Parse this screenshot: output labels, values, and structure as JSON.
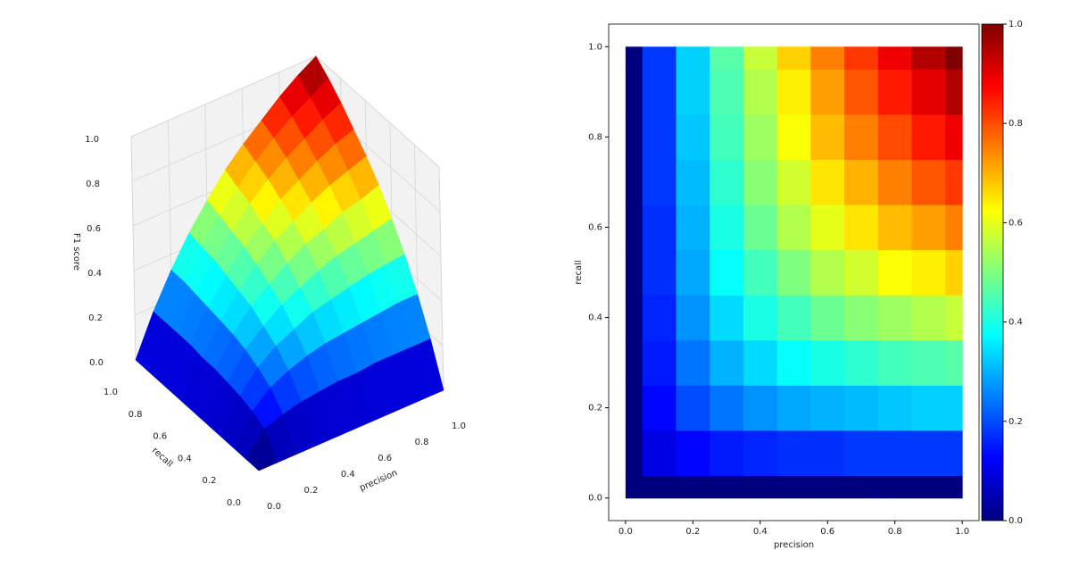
{
  "chart_data": [
    {
      "type": "surface3d",
      "xlabel": "precision",
      "ylabel": "recall",
      "zlabel": "F1 score",
      "x": [
        0,
        0.1,
        0.2,
        0.3,
        0.4,
        0.5,
        0.6,
        0.7,
        0.8,
        0.9,
        1
      ],
      "y": [
        0,
        0.1,
        0.2,
        0.3,
        0.4,
        0.5,
        0.6,
        0.7,
        0.8,
        0.9,
        1
      ],
      "z": [
        [
          0,
          0,
          0,
          0,
          0,
          0,
          0,
          0,
          0,
          0,
          0
        ],
        [
          0,
          0.1,
          0.13,
          0.15,
          0.16,
          0.17,
          0.17,
          0.18,
          0.18,
          0.18,
          0.18
        ],
        [
          0,
          0.13,
          0.2,
          0.24,
          0.27,
          0.29,
          0.3,
          0.31,
          0.32,
          0.33,
          0.33
        ],
        [
          0,
          0.15,
          0.24,
          0.3,
          0.34,
          0.38,
          0.4,
          0.42,
          0.44,
          0.45,
          0.46
        ],
        [
          0,
          0.16,
          0.27,
          0.34,
          0.4,
          0.44,
          0.48,
          0.51,
          0.53,
          0.55,
          0.57
        ],
        [
          0,
          0.17,
          0.29,
          0.38,
          0.44,
          0.5,
          0.55,
          0.58,
          0.62,
          0.64,
          0.67
        ],
        [
          0,
          0.17,
          0.3,
          0.4,
          0.48,
          0.55,
          0.6,
          0.65,
          0.69,
          0.72,
          0.75
        ],
        [
          0,
          0.18,
          0.31,
          0.42,
          0.51,
          0.58,
          0.65,
          0.7,
          0.75,
          0.79,
          0.82
        ],
        [
          0,
          0.18,
          0.32,
          0.44,
          0.53,
          0.62,
          0.69,
          0.75,
          0.8,
          0.85,
          0.89
        ],
        [
          0,
          0.18,
          0.33,
          0.45,
          0.55,
          0.64,
          0.72,
          0.79,
          0.85,
          0.9,
          0.95
        ],
        [
          0,
          0.18,
          0.33,
          0.46,
          0.57,
          0.67,
          0.75,
          0.82,
          0.89,
          0.95,
          1
        ]
      ],
      "xlim": [
        0,
        1
      ],
      "ylim": [
        0,
        1
      ],
      "zlim": [
        0,
        1
      ],
      "xticks": [
        {
          "value": 0,
          "label": "0.0"
        },
        0.2,
        0.4,
        0.6,
        0.8,
        {
          "value": 1,
          "label": "1.0"
        }
      ],
      "yticks": [
        {
          "value": 0,
          "label": "0.0"
        },
        0.2,
        0.4,
        0.6,
        0.8,
        {
          "value": 1,
          "label": "1.0"
        }
      ],
      "zticks": [
        {
          "value": 0,
          "label": "0.0"
        },
        0.2,
        0.4,
        0.6,
        0.8,
        {
          "value": 1,
          "label": "1.0"
        }
      ],
      "colormap": [
        "#00007f",
        "#0000ff",
        "#007fff",
        "#00ffff",
        "#7fff7f",
        "#ffff00",
        "#ff7f00",
        "#ff0000",
        "#7f0000"
      ]
    },
    {
      "type": "heatmap",
      "xlabel": "precision",
      "ylabel": "recall",
      "x": [
        0,
        0.1,
        0.2,
        0.3,
        0.4,
        0.5,
        0.6,
        0.7,
        0.8,
        0.9,
        1
      ],
      "y": [
        0,
        0.1,
        0.2,
        0.3,
        0.4,
        0.5,
        0.6,
        0.7,
        0.8,
        0.9,
        1
      ],
      "z": [
        [
          0,
          0,
          0,
          0,
          0,
          0,
          0,
          0,
          0,
          0,
          0
        ],
        [
          0,
          0.1,
          0.13,
          0.15,
          0.16,
          0.17,
          0.17,
          0.18,
          0.18,
          0.18,
          0.18
        ],
        [
          0,
          0.13,
          0.2,
          0.24,
          0.27,
          0.29,
          0.3,
          0.31,
          0.32,
          0.33,
          0.33
        ],
        [
          0,
          0.15,
          0.24,
          0.3,
          0.34,
          0.38,
          0.4,
          0.42,
          0.44,
          0.45,
          0.46
        ],
        [
          0,
          0.16,
          0.27,
          0.34,
          0.4,
          0.44,
          0.48,
          0.51,
          0.53,
          0.55,
          0.57
        ],
        [
          0,
          0.17,
          0.29,
          0.38,
          0.44,
          0.5,
          0.55,
          0.58,
          0.62,
          0.64,
          0.67
        ],
        [
          0,
          0.17,
          0.3,
          0.4,
          0.48,
          0.55,
          0.6,
          0.65,
          0.69,
          0.72,
          0.75
        ],
        [
          0,
          0.18,
          0.31,
          0.42,
          0.51,
          0.58,
          0.65,
          0.7,
          0.75,
          0.79,
          0.82
        ],
        [
          0,
          0.18,
          0.32,
          0.44,
          0.53,
          0.62,
          0.69,
          0.75,
          0.8,
          0.85,
          0.89
        ],
        [
          0,
          0.18,
          0.33,
          0.45,
          0.55,
          0.64,
          0.72,
          0.79,
          0.85,
          0.9,
          0.95
        ],
        [
          0,
          0.18,
          0.33,
          0.46,
          0.57,
          0.67,
          0.75,
          0.82,
          0.89,
          0.95,
          1
        ]
      ],
      "xlim": [
        -0.05,
        1.05
      ],
      "ylim": [
        -0.05,
        1.05
      ],
      "xticks": [
        {
          "value": 0,
          "label": "0.0"
        },
        0.2,
        0.4,
        0.6,
        0.8,
        {
          "value": 1,
          "label": "1.0"
        }
      ],
      "yticks": [
        {
          "value": 0,
          "label": "0.0"
        },
        0.2,
        0.4,
        0.6,
        0.8,
        {
          "value": 1,
          "label": "1.0"
        }
      ],
      "clim": [
        0,
        1
      ],
      "colorbar_ticks": [
        {
          "value": 0,
          "label": "0.0"
        },
        0.2,
        0.4,
        0.6,
        0.8,
        {
          "value": 1,
          "label": "1.0"
        }
      ],
      "colormap": [
        "#00007f",
        "#0000ff",
        "#007fff",
        "#00ffff",
        "#7fff7f",
        "#ffff00",
        "#ff7f00",
        "#ff0000",
        "#7f0000"
      ]
    }
  ]
}
